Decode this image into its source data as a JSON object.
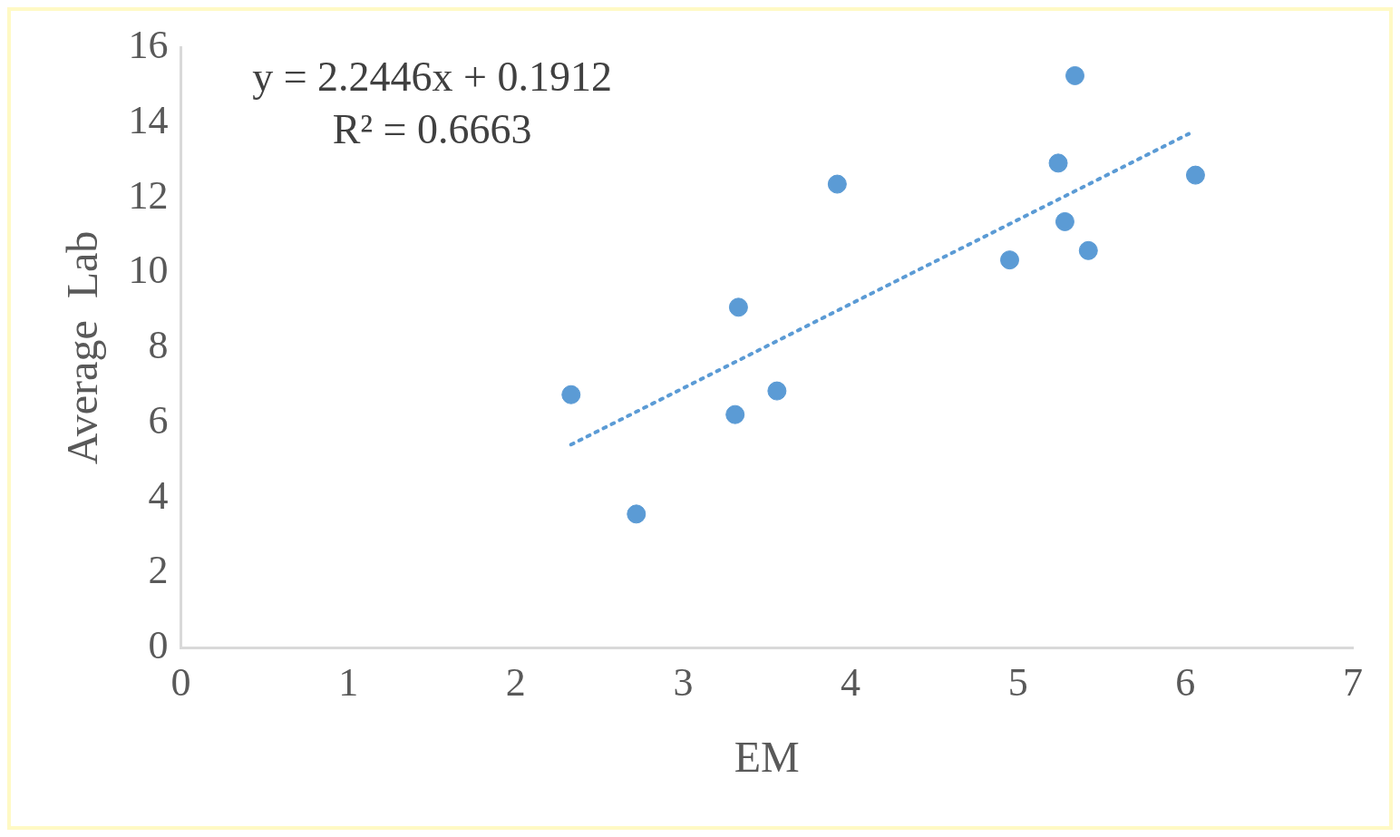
{
  "chart_data": {
    "type": "scatter",
    "xlabel": "EM",
    "ylabel": "Average  Lab",
    "annotations": [
      "y = 2.2446x + 0.1912",
      "R² = 0.6663"
    ],
    "xlim": [
      0,
      7
    ],
    "xticks": [
      0,
      1,
      2,
      3,
      4,
      5,
      6,
      7
    ],
    "ylim": [
      0,
      16
    ],
    "yticks": [
      0,
      2,
      4,
      6,
      8,
      10,
      12,
      14,
      16
    ],
    "grid": false,
    "legend": false,
    "series": [
      {
        "type": "scatter",
        "color": "#5b9bd5",
        "marker": "circle",
        "x": [
          2.33,
          2.72,
          3.31,
          3.33,
          3.56,
          3.92,
          4.95,
          5.24,
          5.28,
          5.34,
          5.42,
          6.06
        ],
        "values": [
          6.75,
          3.57,
          6.22,
          9.08,
          6.85,
          12.36,
          10.34,
          12.92,
          11.36,
          15.25,
          10.59,
          12.6
        ]
      },
      {
        "type": "line",
        "color": "#5b9bd5",
        "marker": "none",
        "line_style": "dotted",
        "x": [
          2.33,
          6.02
        ],
        "values": [
          5.42,
          13.7
        ]
      }
    ]
  }
}
